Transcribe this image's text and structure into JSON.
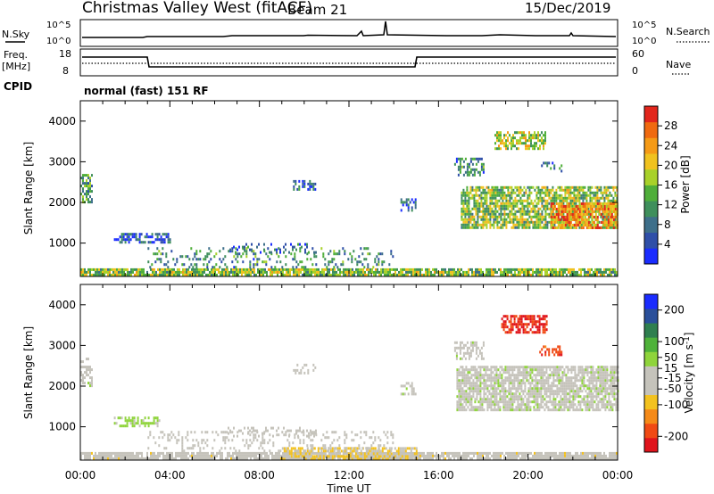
{
  "header": {
    "station": "Christmas Valley West (fitACF)",
    "beam": "Beam 21",
    "date": "15/Dec/2019"
  },
  "panels": {
    "noise_left_label": "N.Sky",
    "noise_right_label": "N.Search",
    "noise_ticks_left": [
      "10^5",
      "10^0"
    ],
    "noise_ticks_right": [
      "10^5",
      "10^0"
    ],
    "freq_label_1": "Freq.",
    "freq_label_2": "[MHz]",
    "freq_ticks": [
      "18",
      "8"
    ],
    "nave_label": "Nave",
    "nave_ticks": [
      "60",
      "0"
    ],
    "cpid_label": "CPID",
    "cpid_text": "normal (fast) 151 RF"
  },
  "colors": {
    "power_scale": [
      "#1a2cff",
      "#2f4fa8",
      "#3e6f8a",
      "#3f8f5c",
      "#4fae3a",
      "#a8d12a",
      "#f0c21f",
      "#f59a16",
      "#f06a10",
      "#e2261c"
    ],
    "velocity_scale": [
      "#e0141c",
      "#f04a14",
      "#f58a18",
      "#f3c21f",
      "#c5c3bb",
      "#c5c3bb",
      "#8fd43b",
      "#4fb23a",
      "#2f7f4f",
      "#2a4f9a",
      "#1a2cff"
    ]
  },
  "chart_data": [
    {
      "type": "heatmap",
      "name": "power",
      "xlabel": "",
      "ylabel": "Slant Range [km]",
      "xlim_hours": [
        0,
        24
      ],
      "ylim": [
        180,
        4500
      ],
      "yticks": [
        1000,
        2000,
        3000,
        4000
      ],
      "colorbar_label": "Power [dB]",
      "colorbar_ticks": [
        4,
        8,
        12,
        16,
        20,
        24,
        28
      ],
      "colorbar_range": [
        0,
        32
      ],
      "regions": [
        {
          "t": [
            0.0,
            24.0
          ],
          "r": [
            200,
            380
          ],
          "v": 16,
          "d": 0.85
        },
        {
          "t": [
            3.0,
            14.0
          ],
          "r": [
            380,
            900
          ],
          "v": 10,
          "d": 0.22
        },
        {
          "t": [
            1.5,
            4.0
          ],
          "r": [
            1000,
            1250
          ],
          "v": 6,
          "d": 0.55
        },
        {
          "t": [
            6.5,
            10.5
          ],
          "r": [
            800,
            1000
          ],
          "v": 7,
          "d": 0.25
        },
        {
          "t": [
            9.5,
            10.5
          ],
          "r": [
            2300,
            2550
          ],
          "v": 6,
          "d": 0.5
        },
        {
          "t": [
            14.3,
            15.0
          ],
          "r": [
            1800,
            2100
          ],
          "v": 6,
          "d": 0.5
        },
        {
          "t": [
            0.0,
            0.5
          ],
          "r": [
            2000,
            2700
          ],
          "v": 12,
          "d": 0.6
        },
        {
          "t": [
            17.0,
            24.0
          ],
          "r": [
            1400,
            2400
          ],
          "v": 16,
          "d": 0.75
        },
        {
          "t": [
            21.0,
            24.0
          ],
          "r": [
            1400,
            2000
          ],
          "v": 25,
          "d": 0.7
        },
        {
          "t": [
            18.5,
            20.8
          ],
          "r": [
            3300,
            3750
          ],
          "v": 18,
          "d": 0.6
        },
        {
          "t": [
            16.7,
            18.0
          ],
          "r": [
            2700,
            3100
          ],
          "v": 10,
          "d": 0.5
        },
        {
          "t": [
            20.5,
            21.5
          ],
          "r": [
            2750,
            3000
          ],
          "v": 8,
          "d": 0.4
        }
      ]
    },
    {
      "type": "heatmap",
      "name": "velocity",
      "xlabel": "Time UT",
      "ylabel": "Slant Range [km]",
      "xlim_hours": [
        0,
        24
      ],
      "xticks": [
        "00:00",
        "04:00",
        "08:00",
        "12:00",
        "16:00",
        "20:00",
        "00:00"
      ],
      "ylim": [
        180,
        4500
      ],
      "yticks": [
        1000,
        2000,
        3000,
        4000
      ],
      "colorbar_label": "Velocity [m s^-1]",
      "colorbar_ticks": [
        -200,
        -100,
        -50,
        -15,
        15,
        50,
        100,
        200
      ],
      "colorbar_range": [
        -250,
        250
      ],
      "regions": [
        {
          "t": [
            0.0,
            24.0
          ],
          "r": [
            200,
            380
          ],
          "v": -40,
          "d": 0.85
        },
        {
          "t": [
            9.0,
            15.0
          ],
          "r": [
            200,
            500
          ],
          "v": -70,
          "d": 0.7
        },
        {
          "t": [
            3.0,
            14.0
          ],
          "r": [
            380,
            900
          ],
          "v": -30,
          "d": 0.22
        },
        {
          "t": [
            1.5,
            3.5
          ],
          "r": [
            1000,
            1250
          ],
          "v": 40,
          "d": 0.55
        },
        {
          "t": [
            6.5,
            10.5
          ],
          "r": [
            800,
            1000
          ],
          "v": -30,
          "d": 0.25
        },
        {
          "t": [
            9.5,
            10.5
          ],
          "r": [
            2300,
            2550
          ],
          "v": 0,
          "d": 0.4
        },
        {
          "t": [
            14.3,
            15.0
          ],
          "r": [
            1800,
            2100
          ],
          "v": 0,
          "d": 0.4
        },
        {
          "t": [
            0.0,
            0.5
          ],
          "r": [
            2000,
            2700
          ],
          "v": 0,
          "d": 0.5
        },
        {
          "t": [
            16.8,
            24.0
          ],
          "r": [
            1400,
            2500
          ],
          "v": 0,
          "d": 0.8
        },
        {
          "t": [
            16.7,
            18.0
          ],
          "r": [
            2700,
            3100
          ],
          "v": 0,
          "d": 0.5
        },
        {
          "t": [
            18.8,
            20.8
          ],
          "r": [
            3300,
            3750
          ],
          "v": -210,
          "d": 0.7
        },
        {
          "t": [
            20.5,
            21.5
          ],
          "r": [
            2750,
            3000
          ],
          "v": -180,
          "d": 0.5
        }
      ]
    }
  ]
}
